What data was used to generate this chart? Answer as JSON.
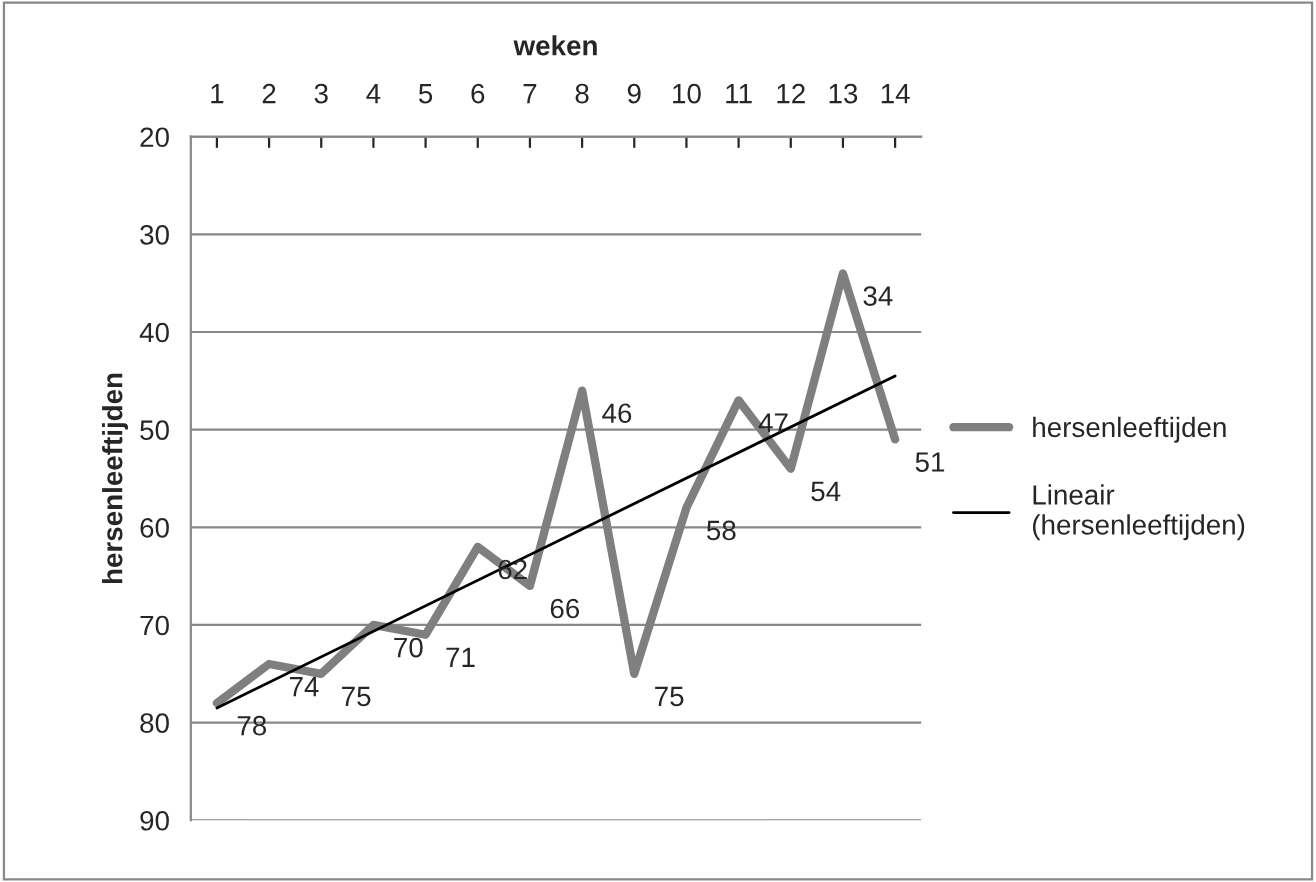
{
  "chart_data": {
    "type": "line",
    "xlabel": "weken",
    "ylabel": "hersenleeftijden",
    "x": [
      1,
      2,
      3,
      4,
      5,
      6,
      7,
      8,
      9,
      10,
      11,
      12,
      13,
      14
    ],
    "xlim": [
      0.5,
      14.5
    ],
    "xticks": [
      1,
      2,
      3,
      4,
      5,
      6,
      7,
      8,
      9,
      10,
      11,
      12,
      13,
      14
    ],
    "ylim": [
      90,
      20
    ],
    "yticks": [
      20,
      30,
      40,
      50,
      60,
      70,
      80,
      90
    ],
    "series": [
      {
        "name": "hersenleeftijden",
        "color": "#7f7f7f",
        "values": [
          78,
          74,
          75,
          70,
          71,
          62,
          66,
          46,
          75,
          58,
          47,
          54,
          34,
          51
        ],
        "value_labels": [
          "78",
          "74",
          "75",
          "70",
          "71",
          "62",
          "66",
          "46",
          "75",
          "58",
          "47",
          "54",
          "34",
          "51"
        ]
      },
      {
        "name": "Lineair (hersenleeftijden)",
        "type": "line",
        "color": "#000000",
        "x": [
          1,
          14
        ],
        "values": [
          78.5,
          44.5
        ]
      }
    ],
    "grid": "y",
    "legend": "right",
    "marker": "none",
    "line_style": "solid"
  }
}
